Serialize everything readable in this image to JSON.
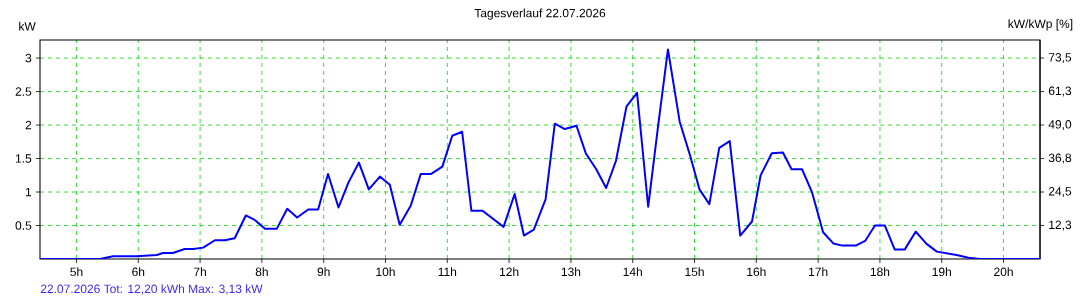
{
  "chart_data": {
    "type": "line",
    "title": "Tagesverlauf 22.07.2026",
    "ylabel": "kW",
    "y2label": "kW/kWp [%]",
    "annotations": [
      "22.07.2026 Tot: 12,20 kWh Max: 3,13 kW"
    ],
    "x": [
      4.41,
      5.38,
      5.59,
      5.97,
      6.3,
      6.4,
      6.56,
      6.75,
      6.89,
      7.05,
      7.24,
      7.4,
      7.56,
      7.74,
      7.89,
      8.05,
      8.24,
      8.41,
      8.57,
      8.75,
      8.91,
      9.07,
      9.24,
      9.4,
      9.57,
      9.73,
      9.91,
      10.07,
      10.23,
      10.41,
      10.57,
      10.74,
      10.92,
      11.08,
      11.24,
      11.39,
      11.57,
      11.91,
      12.09,
      12.24,
      12.4,
      12.59,
      12.74,
      12.9,
      13.09,
      13.24,
      13.41,
      13.57,
      13.73,
      13.9,
      14.07,
      14.25,
      14.41,
      14.57,
      14.76,
      14.92,
      15.08,
      15.24,
      15.4,
      15.57,
      15.74,
      15.93,
      16.07,
      16.25,
      16.43,
      16.57,
      16.74,
      16.9,
      17.08,
      17.25,
      17.39,
      17.61,
      17.76,
      17.92,
      18.08,
      18.24,
      18.4,
      18.58,
      18.75,
      18.92,
      19.24,
      19.43,
      19.62,
      20.59
    ],
    "series": [
      {
        "color": "#0000ff",
        "values": [
          0,
          0,
          0.04,
          0.04,
          0.06,
          0.09,
          0.09,
          0.15,
          0.15,
          0.17,
          0.28,
          0.28,
          0.31,
          0.65,
          0.58,
          0.45,
          0.45,
          0.75,
          0.62,
          0.74,
          0.74,
          1.27,
          0.77,
          1.14,
          1.44,
          1.04,
          1.23,
          1.11,
          0.51,
          0.8,
          1.27,
          1.27,
          1.38,
          1.84,
          1.9,
          0.72,
          0.72,
          0.48,
          0.97,
          0.35,
          0.44,
          0.89,
          2.02,
          1.94,
          1.99,
          1.58,
          1.34,
          1.06,
          1.47,
          2.28,
          2.48,
          0.78,
          1.98,
          3.13,
          2.05,
          1.57,
          1.04,
          0.82,
          1.66,
          1.76,
          0.35,
          0.56,
          1.25,
          1.58,
          1.59,
          1.34,
          1.34,
          1.0,
          0.4,
          0.23,
          0.2,
          0.2,
          0.27,
          0.5,
          0.5,
          0.14,
          0.14,
          0.41,
          0.23,
          0.11,
          0.06,
          0.02,
          0,
          0
        ]
      }
    ],
    "xlim": [
      4.41,
      20.59
    ],
    "ylim": [
      0,
      3.27
    ],
    "xticks": [
      {
        "value": 5,
        "label": "5h"
      },
      {
        "value": 6,
        "label": "6h"
      },
      {
        "value": 7,
        "label": "7h"
      },
      {
        "value": 8,
        "label": "8h"
      },
      {
        "value": 9,
        "label": "9h"
      },
      {
        "value": 10,
        "label": "10h"
      },
      {
        "value": 11,
        "label": "11h"
      },
      {
        "value": 12,
        "label": "12h"
      },
      {
        "value": 13,
        "label": "13h"
      },
      {
        "value": 14,
        "label": "14h"
      },
      {
        "value": 15,
        "label": "15h"
      },
      {
        "value": 16,
        "label": "16h"
      },
      {
        "value": 17,
        "label": "17h"
      },
      {
        "value": 18,
        "label": "18h"
      },
      {
        "value": 19,
        "label": "19h"
      },
      {
        "value": 20,
        "label": "20h"
      }
    ],
    "yticks": [
      0.5,
      1,
      1.5,
      2,
      2.5,
      3
    ],
    "y2lim": [
      0,
      80.1
    ],
    "y2ticks": [
      {
        "value": 12.25,
        "label": "12,3"
      },
      {
        "value": 24.5,
        "label": "24,5"
      },
      {
        "value": 36.75,
        "label": "36,8"
      },
      {
        "value": 49,
        "label": "49,0"
      },
      {
        "value": 61.25,
        "label": "61,3"
      },
      {
        "value": 73.5,
        "label": "73,5"
      }
    ],
    "grid": true
  }
}
